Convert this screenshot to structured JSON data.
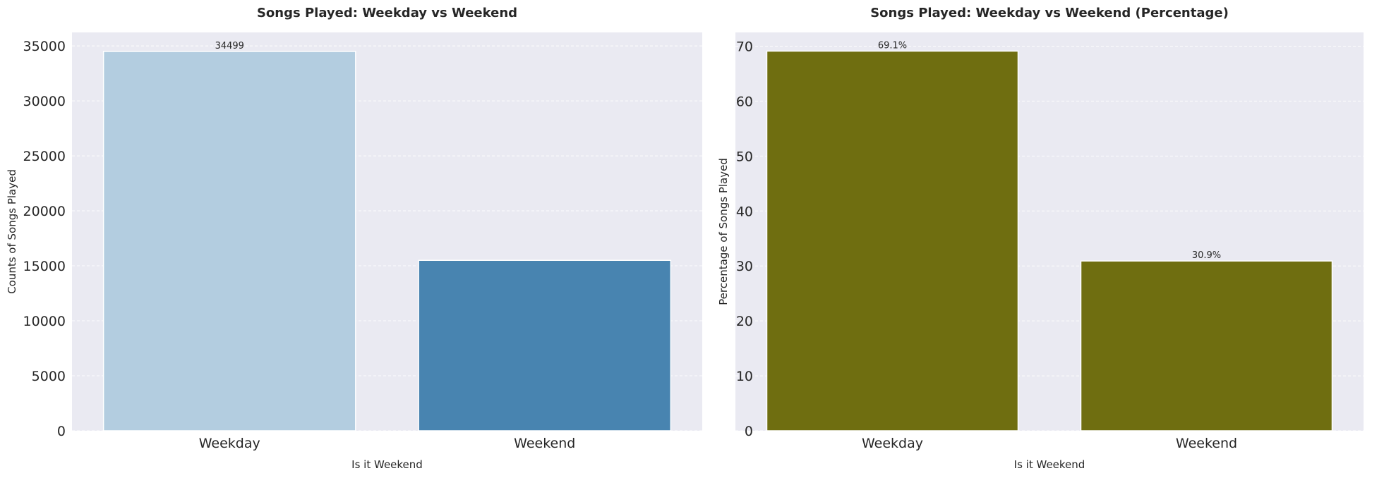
{
  "chart_data": [
    {
      "type": "bar",
      "title": "Songs Played: Weekday vs Weekend",
      "xlabel": "Is it Weekend",
      "ylabel": "Counts of Songs Played",
      "categories": [
        "Weekday",
        "Weekend"
      ],
      "values": [
        34499,
        15501
      ],
      "data_labels": [
        "34499",
        ""
      ],
      "ylim": [
        0,
        36225
      ],
      "yticks": [
        0,
        5000,
        10000,
        15000,
        20000,
        25000,
        30000,
        35000
      ],
      "ytick_labels": [
        "0",
        "5000",
        "10000",
        "15000",
        "20000",
        "25000",
        "30000",
        "35000"
      ],
      "bar_colors": [
        "#b3cde0",
        "#4884b0"
      ],
      "background": "#eaeaf2",
      "grid": true
    },
    {
      "type": "bar",
      "title": "Songs Played: Weekday vs Weekend (Percentage)",
      "xlabel": "Is it Weekend",
      "ylabel": "Percentage of Songs Played",
      "categories": [
        "Weekday",
        "Weekend"
      ],
      "values": [
        69.1,
        30.9
      ],
      "data_labels": [
        "69.1%",
        "30.9%"
      ],
      "ylim": [
        0,
        72.5
      ],
      "yticks": [
        0,
        10,
        20,
        30,
        40,
        50,
        60,
        70
      ],
      "ytick_labels": [
        "0",
        "10",
        "20",
        "30",
        "40",
        "50",
        "60",
        "70"
      ],
      "bar_colors": [
        "#6f6e10",
        "#6f6e10"
      ],
      "background": "#eaeaf2",
      "grid": true
    }
  ]
}
